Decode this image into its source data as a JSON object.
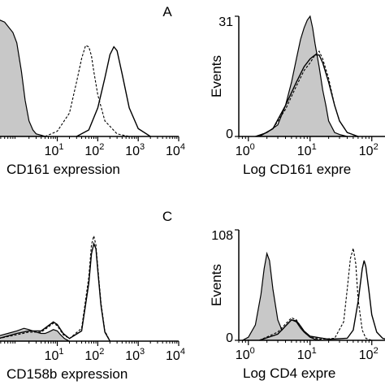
{
  "chart_data": [
    {
      "type": "area",
      "panel_label": "A",
      "xlabel": "CD161 expression",
      "ylabel": "",
      "x_scale": "log",
      "xlim": [
        0.35,
        10000
      ],
      "x_ticks": [
        {
          "base": "10",
          "exp": "1"
        },
        {
          "base": "10",
          "exp": "2"
        },
        {
          "base": "10",
          "exp": "3"
        },
        {
          "base": "10",
          "exp": "4"
        }
      ],
      "y_ticks": [],
      "ylim": [
        0,
        100
      ],
      "series": [
        {
          "style": "filled-gray",
          "x": [
            0.35,
            0.5,
            0.8,
            1.0,
            1.3,
            1.6,
            2.0,
            2.5,
            3.0,
            4.0,
            5.0
          ],
          "y": [
            90,
            88,
            80,
            72,
            50,
            28,
            12,
            5,
            2,
            1,
            0
          ]
        },
        {
          "style": "dashed",
          "x": [
            5,
            10,
            20,
            30,
            40,
            50,
            60,
            70,
            80,
            100,
            150,
            300,
            600
          ],
          "y": [
            0,
            4,
            18,
            42,
            60,
            70,
            69,
            62,
            50,
            32,
            12,
            2,
            0
          ]
        },
        {
          "style": "solid",
          "x": [
            30,
            60,
            100,
            150,
            200,
            250,
            300,
            400,
            600,
            1000,
            2000
          ],
          "y": [
            0,
            5,
            22,
            45,
            63,
            69,
            66,
            48,
            22,
            6,
            0
          ]
        }
      ]
    },
    {
      "type": "area",
      "panel_label": "",
      "xlabel": "Log CD161 expre",
      "ylabel": "Events",
      "x_scale": "log",
      "xlim": [
        0.7,
        300
      ],
      "x_ticks": [
        {
          "base": "10",
          "exp": "0"
        },
        {
          "base": "10",
          "exp": "1"
        },
        {
          "base": "10",
          "exp": "2"
        }
      ],
      "y_ticks": [
        "0",
        "31"
      ],
      "ylim": [
        0,
        31
      ],
      "series": [
        {
          "style": "filled-gray",
          "x": [
            1.3,
            2,
            3,
            4,
            5,
            6,
            7,
            8,
            9,
            10,
            11,
            12,
            14,
            16,
            18,
            20,
            25,
            30,
            40
          ],
          "y": [
            0,
            1,
            3,
            8,
            14,
            20,
            25,
            28,
            30,
            31,
            28,
            24,
            18,
            12,
            8,
            4,
            1,
            0.5,
            0
          ]
        },
        {
          "style": "dashed",
          "x": [
            1.5,
            2.5,
            4,
            6,
            8,
            10,
            12,
            14,
            16,
            20,
            25,
            30,
            40,
            60
          ],
          "y": [
            0,
            2,
            7,
            13,
            17,
            19,
            21,
            22,
            20,
            15,
            8,
            4,
            1,
            0
          ]
        },
        {
          "style": "solid",
          "x": [
            1.5,
            2.5,
            4,
            6,
            8,
            10,
            12,
            14,
            16,
            20,
            25,
            30,
            40,
            60
          ],
          "y": [
            0,
            2,
            8,
            14,
            18,
            20,
            21,
            21,
            19,
            14,
            8,
            4,
            1,
            0
          ]
        }
      ]
    },
    {
      "type": "area",
      "panel_label": "C",
      "xlabel": "CD158b expression",
      "ylabel": "",
      "x_scale": "log",
      "xlim": [
        0.35,
        10000
      ],
      "x_ticks": [
        {
          "base": "10",
          "exp": "1"
        },
        {
          "base": "10",
          "exp": "2"
        },
        {
          "base": "10",
          "exp": "3"
        },
        {
          "base": "10",
          "exp": "4"
        }
      ],
      "y_ticks": [],
      "ylim": [
        0,
        100
      ],
      "series": [
        {
          "style": "filled-gray",
          "x": [
            0.35,
            0.6,
            1,
            1.5,
            2,
            3,
            4,
            5,
            6,
            8,
            10,
            12,
            15,
            20
          ],
          "y": [
            4,
            6,
            8,
            10,
            9,
            7,
            6,
            6,
            7,
            9,
            8,
            5,
            2,
            0
          ]
        },
        {
          "style": "dashed",
          "x": [
            0.35,
            1,
            2,
            4,
            6,
            8,
            10,
            14,
            20,
            40,
            60,
            70,
            80,
            90,
            100,
            120,
            150,
            200
          ],
          "y": [
            2,
            5,
            7,
            7,
            11,
            14,
            12,
            5,
            2,
            10,
            50,
            75,
            82,
            75,
            58,
            30,
            8,
            0
          ]
        },
        {
          "style": "solid",
          "x": [
            0.35,
            1,
            2,
            4,
            6,
            8,
            10,
            14,
            20,
            40,
            60,
            70,
            80,
            90,
            100,
            120,
            150,
            200
          ],
          "y": [
            2,
            6,
            8,
            8,
            12,
            15,
            13,
            6,
            2,
            8,
            45,
            68,
            76,
            72,
            55,
            28,
            7,
            0
          ]
        }
      ]
    },
    {
      "type": "area",
      "panel_label": "",
      "xlabel": "Log CD4 expre",
      "ylabel": "Events",
      "x_scale": "log",
      "xlim": [
        0.7,
        300
      ],
      "x_ticks": [
        {
          "base": "10",
          "exp": "0"
        },
        {
          "base": "10",
          "exp": "1"
        },
        {
          "base": "10",
          "exp": "2"
        }
      ],
      "y_ticks": [
        "0",
        "108"
      ],
      "ylim": [
        0,
        108
      ],
      "series": [
        {
          "style": "filled-gray",
          "x": [
            0.8,
            1.0,
            1.3,
            1.6,
            1.8,
            2.0,
            2.2,
            2.5,
            3.0,
            3.5,
            4.0,
            5.0,
            6.0,
            7.0,
            8.0,
            10,
            12,
            15
          ],
          "y": [
            0,
            3,
            15,
            45,
            70,
            85,
            78,
            50,
            20,
            10,
            14,
            20,
            18,
            12,
            8,
            3,
            1,
            0
          ]
        },
        {
          "style": "dashed",
          "x": [
            1.5,
            3,
            4,
            5,
            6,
            7,
            8,
            10,
            15,
            25,
            35,
            40,
            45,
            50,
            55,
            60,
            70,
            80,
            100
          ],
          "y": [
            0,
            8,
            16,
            22,
            20,
            14,
            8,
            3,
            1,
            2,
            18,
            50,
            80,
            90,
            75,
            40,
            10,
            2,
            0
          ]
        },
        {
          "style": "solid",
          "x": [
            1.5,
            3,
            4,
            5,
            6,
            7,
            8,
            10,
            20,
            40,
            50,
            60,
            70,
            75,
            80,
            90,
            100,
            120,
            150,
            200
          ],
          "y": [
            0,
            6,
            14,
            20,
            19,
            14,
            9,
            4,
            1,
            2,
            10,
            38,
            70,
            78,
            72,
            48,
            25,
            8,
            2,
            0
          ]
        }
      ]
    }
  ]
}
